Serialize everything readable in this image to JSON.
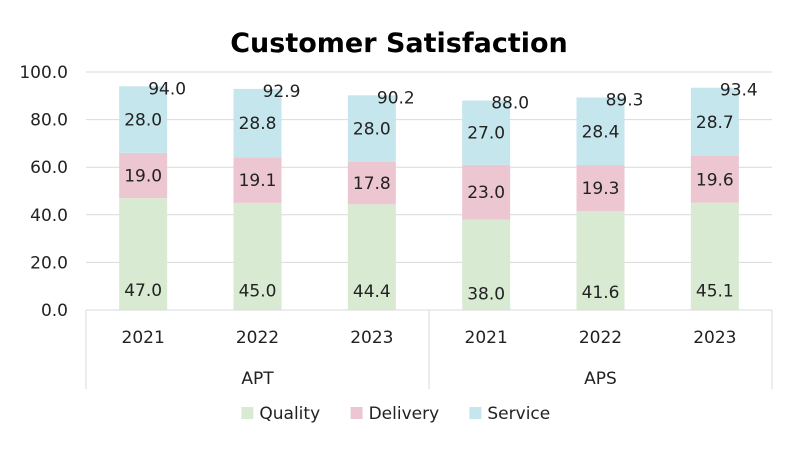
{
  "chart_data": {
    "type": "bar",
    "stacked": true,
    "title": "Customer Satisfaction",
    "groups": [
      {
        "name": "APT",
        "categories": [
          "2021",
          "2022",
          "2023"
        ]
      },
      {
        "name": "APS",
        "categories": [
          "2021",
          "2022",
          "2023"
        ]
      }
    ],
    "series": [
      {
        "name": "Quality",
        "color": "#d9ead3",
        "values": [
          47.0,
          45.0,
          44.4,
          38.0,
          41.6,
          45.1
        ],
        "labels": [
          "47.0",
          "45.0",
          "44.4",
          "38.0",
          "41.6",
          "45.1"
        ]
      },
      {
        "name": "Delivery",
        "color": "#ecc6d1",
        "values": [
          19.0,
          19.1,
          17.8,
          23.0,
          19.3,
          19.6
        ],
        "labels": [
          "19.0",
          "19.1",
          "17.8",
          "23.0",
          "19.3",
          "19.6"
        ]
      },
      {
        "name": "Service",
        "color": "#c5e6ec",
        "values": [
          28.0,
          28.8,
          28.0,
          27.0,
          28.4,
          28.7
        ],
        "labels": [
          "28.0",
          "28.8",
          "28.0",
          "27.0",
          "28.4",
          "28.7"
        ]
      }
    ],
    "totals": [
      94.0,
      92.9,
      90.2,
      88.0,
      89.3,
      93.4
    ],
    "total_labels": [
      "94.0",
      "92.9",
      "90.2",
      "88.0",
      "89.3",
      "93.4"
    ],
    "ylim": [
      0,
      100
    ],
    "yticks": [
      0,
      20,
      40,
      60,
      80,
      100
    ],
    "ytick_labels": [
      "0.0",
      "20.0",
      "40.0",
      "60.0",
      "80.0",
      "100.0"
    ],
    "grid": true,
    "legend_position": "bottom"
  }
}
